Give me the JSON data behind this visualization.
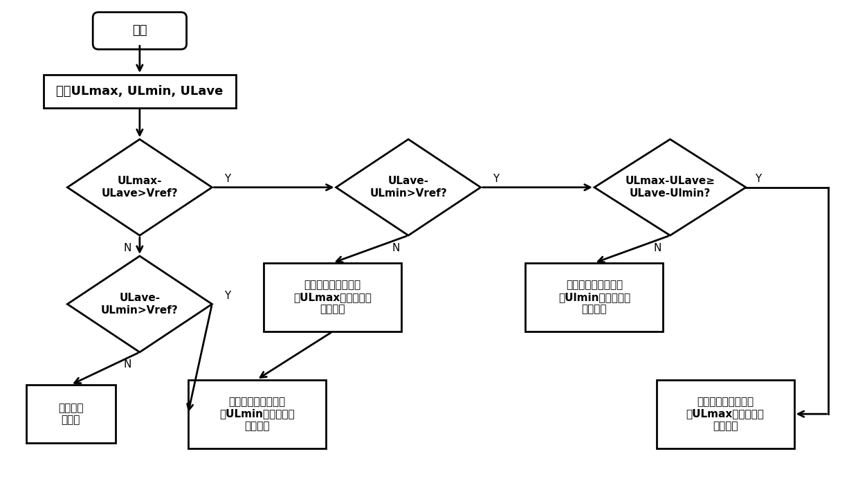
{
  "bg_color": "#ffffff",
  "line_color": "#000000",
  "text_color": "#000000",
  "fs_large": 13,
  "fs_medium": 11,
  "fs_label": 11,
  "start_text": "开始",
  "rect1_text": "判别ULmax, ULmin, ULave",
  "d1_text": "ULmax-\nULave>Vref?",
  "d2_text": "ULave-\nULmin>Vref?",
  "d3_text": "ULmax-ULave≥\nULave-Ulmin?",
  "d4_text": "ULave-\nULmin>Vref?",
  "box_no_work": "均衡电路\n不工作",
  "box_left_dis1": "左边均衡电路工作，\n对ULmax对应的单体\n放电均衡",
  "box_right_chg1": "右边均衡电路工作，\n对Ulmin对应的单体\n充电均衡",
  "box_right_chg2": "右边均衡电路工作，\n对ULmin对应的单体\n充电均衡",
  "box_left_dis2": "左边均衡电路工作，\n对ULmax对应的单体\n放电均衡"
}
